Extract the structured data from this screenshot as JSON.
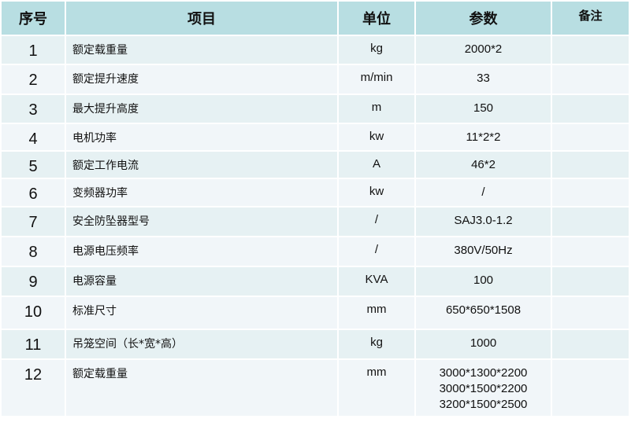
{
  "headers": {
    "index": "序号",
    "item": "项目",
    "unit": "单位",
    "param": "参数",
    "note": "备注"
  },
  "rows": [
    {
      "index": "1",
      "item": "额定载重量",
      "unit": "kg",
      "params": [
        "2000*2"
      ],
      "note": ""
    },
    {
      "index": "2",
      "item": "额定提升速度",
      "unit": "m/min",
      "params": [
        "33"
      ],
      "note": ""
    },
    {
      "index": "3",
      "item": "最大提升高度",
      "unit": "m",
      "params": [
        "150"
      ],
      "note": ""
    },
    {
      "index": "4",
      "item": "电机功率",
      "unit": "kw",
      "params": [
        "11*2*2"
      ],
      "note": ""
    },
    {
      "index": "5",
      "item": "额定工作电流",
      "unit": "A",
      "params": [
        "46*2"
      ],
      "note": ""
    },
    {
      "index": "6",
      "item": "变频器功率",
      "unit": "kw",
      "params": [
        "/"
      ],
      "note": ""
    },
    {
      "index": "7",
      "item": "安全防坠器型号",
      "unit": "/",
      "params": [
        "SAJ3.0-1.2"
      ],
      "note": ""
    },
    {
      "index": "8",
      "item": "电源电压频率",
      "unit": "/",
      "params": [
        "380V/50Hz"
      ],
      "note": ""
    },
    {
      "index": "9",
      "item": "电源容量",
      "unit": "KVA",
      "params": [
        "100"
      ],
      "note": ""
    },
    {
      "index": "10",
      "item": "标准尺寸",
      "unit": "mm",
      "params": [
        "650*650*1508"
      ],
      "note": ""
    },
    {
      "index": "11",
      "item": "吊笼空间（长*宽*高）",
      "unit": "kg",
      "params": [
        "1000"
      ],
      "note": ""
    },
    {
      "index": "12",
      "item": "额定载重量",
      "unit": "mm",
      "params": [
        "3000*1300*2200",
        "3000*1500*2200",
        "3200*1500*2500"
      ],
      "note": ""
    }
  ]
}
